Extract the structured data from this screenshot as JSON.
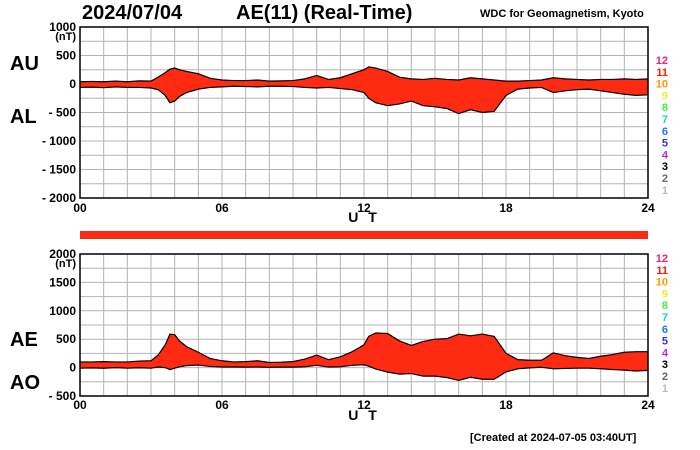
{
  "header": {
    "date": "2024/07/04",
    "title": "AE(11) (Real-Time)",
    "source": "WDC for Geomagnetism, Kyoto"
  },
  "footer": {
    "created": "[Created at 2024-07-05 03:40UT]"
  },
  "colors": {
    "fill": "#ff2a12",
    "line": "#000000",
    "grid": "#b4b4b4"
  },
  "station_legend": {
    "items": [
      "12",
      "11",
      "10",
      "9",
      "8",
      "7",
      "6",
      "5",
      "4",
      "3",
      "2",
      "1"
    ],
    "colors": [
      "#ee2277",
      "#ee2200",
      "#ff9900",
      "#eeee33",
      "#44ee44",
      "#22cccc",
      "#2277ee",
      "#3333cc",
      "#cc22cc",
      "#000000",
      "#666666",
      "#bbbbbb"
    ]
  },
  "chart_data": [
    {
      "type": "area",
      "name": "AU/AL",
      "labels": {
        "upper": "AU",
        "lower": "AL"
      },
      "xlabel": "U T",
      "unit": "(nT)",
      "xlim": [
        0,
        24
      ],
      "xticks": [
        "00",
        "06",
        "12",
        "18",
        "24"
      ],
      "ylim": [
        -2000,
        1000
      ],
      "yticks": [
        "1000",
        "500",
        "0",
        "- 500",
        "- 1000",
        "- 1500",
        "- 2000"
      ],
      "grid": true,
      "series": [
        {
          "name": "AU",
          "x": [
            0,
            0.5,
            1,
            1.5,
            2,
            2.5,
            3,
            3.3,
            3.6,
            3.8,
            4,
            4.2,
            4.5,
            5,
            5.5,
            6,
            6.5,
            7,
            7.5,
            8,
            8.5,
            9,
            9.5,
            10,
            10.5,
            11,
            11.5,
            12,
            12.2,
            12.5,
            13,
            13.5,
            14,
            14.5,
            15,
            15.5,
            16,
            16.5,
            17,
            17.5,
            18,
            18.5,
            19,
            19.5,
            20,
            20.5,
            21,
            21.5,
            22,
            22.5,
            23,
            23.5,
            24
          ],
          "values": [
            40,
            45,
            40,
            50,
            40,
            55,
            50,
            120,
            200,
            260,
            280,
            250,
            220,
            180,
            100,
            70,
            60,
            60,
            70,
            50,
            55,
            60,
            90,
            150,
            80,
            110,
            180,
            250,
            300,
            280,
            220,
            120,
            90,
            80,
            100,
            80,
            70,
            110,
            90,
            70,
            50,
            50,
            60,
            70,
            110,
            90,
            80,
            70,
            80,
            80,
            90,
            80,
            90
          ]
        },
        {
          "name": "AL",
          "x": [
            0,
            0.5,
            1,
            1.5,
            2,
            2.5,
            3,
            3.3,
            3.6,
            3.8,
            4,
            4.2,
            4.5,
            5,
            5.5,
            6,
            6.5,
            7,
            7.5,
            8,
            8.5,
            9,
            9.5,
            10,
            10.5,
            11,
            11.5,
            12,
            12.2,
            12.5,
            13,
            13.5,
            14,
            14.5,
            15,
            15.5,
            16,
            16.5,
            17,
            17.5,
            18,
            18.5,
            19,
            19.5,
            20,
            20.5,
            21,
            21.5,
            22,
            22.5,
            23,
            23.5,
            24
          ],
          "values": [
            -60,
            -55,
            -65,
            -50,
            -60,
            -60,
            -70,
            -100,
            -200,
            -330,
            -300,
            -220,
            -150,
            -90,
            -60,
            -50,
            -40,
            -45,
            -50,
            -40,
            -40,
            -45,
            -60,
            -70,
            -60,
            -80,
            -100,
            -150,
            -250,
            -330,
            -380,
            -350,
            -300,
            -380,
            -400,
            -430,
            -520,
            -450,
            -500,
            -480,
            -200,
            -90,
            -70,
            -60,
            -150,
            -120,
            -100,
            -90,
            -120,
            -150,
            -180,
            -200,
            -190
          ]
        }
      ]
    },
    {
      "type": "area",
      "name": "AE/AO",
      "labels": {
        "upper": "AE",
        "lower": "AO"
      },
      "xlabel": "U T",
      "unit": "(nT)",
      "xlim": [
        0,
        24
      ],
      "xticks": [
        "00",
        "06",
        "12",
        "18",
        "24"
      ],
      "ylim": [
        -500,
        2000
      ],
      "yticks": [
        "2000",
        "1500",
        "1000",
        "500",
        "0",
        "- 500"
      ],
      "grid": true,
      "series": [
        {
          "name": "AE",
          "x": [
            0,
            0.5,
            1,
            1.5,
            2,
            2.5,
            3,
            3.3,
            3.6,
            3.8,
            4,
            4.2,
            4.5,
            5,
            5.5,
            6,
            6.5,
            7,
            7.5,
            8,
            8.5,
            9,
            9.5,
            10,
            10.5,
            11,
            11.5,
            12,
            12.2,
            12.5,
            13,
            13.5,
            14,
            14.5,
            15,
            15.5,
            16,
            16.5,
            17,
            17.5,
            18,
            18.5,
            19,
            19.5,
            20,
            20.5,
            21,
            21.5,
            22,
            22.5,
            23,
            23.5,
            24
          ],
          "values": [
            100,
            100,
            105,
            100,
            100,
            115,
            120,
            220,
            400,
            590,
            580,
            470,
            370,
            270,
            160,
            120,
            100,
            105,
            120,
            90,
            95,
            105,
            150,
            220,
            140,
            190,
            280,
            400,
            550,
            610,
            600,
            470,
            390,
            460,
            500,
            510,
            590,
            560,
            590,
            550,
            250,
            140,
            130,
            130,
            260,
            210,
            180,
            160,
            200,
            230,
            270,
            280,
            280
          ]
        },
        {
          "name": "AO",
          "x": [
            0,
            0.5,
            1,
            1.5,
            2,
            2.5,
            3,
            3.3,
            3.6,
            3.8,
            4,
            4.2,
            4.5,
            5,
            5.5,
            6,
            6.5,
            7,
            7.5,
            8,
            8.5,
            9,
            9.5,
            10,
            10.5,
            11,
            11.5,
            12,
            12.2,
            12.5,
            13,
            13.5,
            14,
            14.5,
            15,
            15.5,
            16,
            16.5,
            17,
            17.5,
            18,
            18.5,
            19,
            19.5,
            20,
            20.5,
            21,
            21.5,
            22,
            22.5,
            23,
            23.5,
            24
          ],
          "values": [
            -10,
            -5,
            -12,
            0,
            -10,
            -2,
            -10,
            10,
            0,
            -35,
            -10,
            15,
            35,
            45,
            20,
            10,
            10,
            8,
            10,
            5,
            8,
            8,
            15,
            40,
            10,
            15,
            40,
            50,
            25,
            -25,
            -80,
            -115,
            -105,
            -150,
            -150,
            -175,
            -225,
            -170,
            -205,
            -205,
            -75,
            -20,
            -5,
            5,
            -20,
            -15,
            -10,
            -10,
            -20,
            -35,
            -45,
            -60,
            -50
          ]
        }
      ]
    }
  ]
}
